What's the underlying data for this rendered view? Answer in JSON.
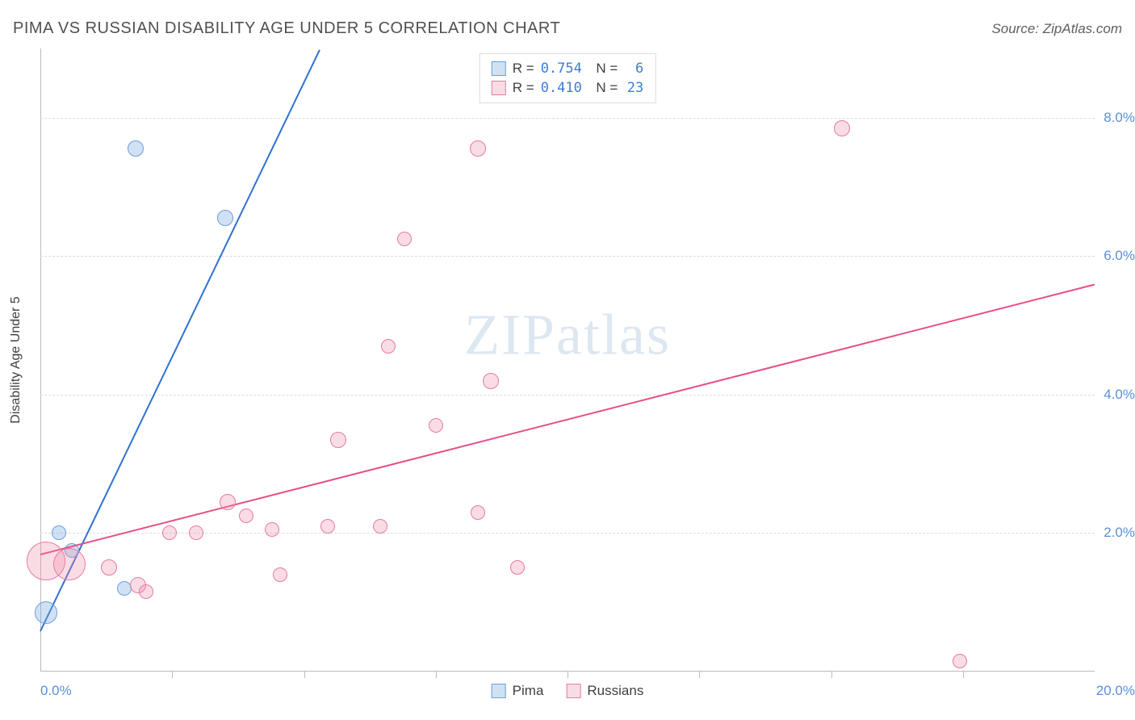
{
  "header": {
    "title": "PIMA VS RUSSIAN DISABILITY AGE UNDER 5 CORRELATION CHART",
    "source": "Source: ZipAtlas.com"
  },
  "watermark": "ZIPatlas",
  "chart": {
    "type": "scatter",
    "y_axis_label": "Disability Age Under 5",
    "xlim": [
      0,
      20
    ],
    "ylim": [
      0,
      9
    ],
    "x_tick_positions": [
      2.5,
      5.0,
      7.5,
      10.0,
      12.5,
      15.0,
      17.5
    ],
    "x_label_min": "0.0%",
    "x_label_max": "20.0%",
    "y_ticks": [
      {
        "v": 2.0,
        "label": "2.0%"
      },
      {
        "v": 4.0,
        "label": "4.0%"
      },
      {
        "v": 6.0,
        "label": "6.0%"
      },
      {
        "v": 8.0,
        "label": "8.0%"
      }
    ],
    "grid_color": "#dcdcdc",
    "background_color": "#ffffff",
    "series": [
      {
        "name": "Pima",
        "fill": "rgba(122,169,224,0.35)",
        "stroke": "#6a9fd8",
        "line_color": "#2f72d0",
        "R": "0.754",
        "N": "6",
        "trend": {
          "x1": 0.0,
          "y1": 0.6,
          "x2": 5.3,
          "y2": 9.0
        },
        "points": [
          {
            "x": 0.1,
            "y": 0.85,
            "r": 14
          },
          {
            "x": 0.35,
            "y": 2.0,
            "r": 9
          },
          {
            "x": 0.6,
            "y": 1.75,
            "r": 9
          },
          {
            "x": 1.6,
            "y": 1.2,
            "r": 9
          },
          {
            "x": 1.8,
            "y": 7.55,
            "r": 10
          },
          {
            "x": 3.5,
            "y": 6.55,
            "r": 10
          }
        ]
      },
      {
        "name": "Russians",
        "fill": "rgba(238,140,170,0.30)",
        "stroke": "#e77aa0",
        "line_color": "#e84e87",
        "R": "0.410",
        "N": "23",
        "trend": {
          "x1": 0.0,
          "y1": 1.7,
          "x2": 20.0,
          "y2": 5.6
        },
        "points": [
          {
            "x": 0.1,
            "y": 1.6,
            "r": 24
          },
          {
            "x": 0.55,
            "y": 1.55,
            "r": 20
          },
          {
            "x": 1.3,
            "y": 1.5,
            "r": 10
          },
          {
            "x": 1.85,
            "y": 1.25,
            "r": 10
          },
          {
            "x": 2.0,
            "y": 1.15,
            "r": 9
          },
          {
            "x": 2.45,
            "y": 2.0,
            "r": 9
          },
          {
            "x": 2.95,
            "y": 2.0,
            "r": 9
          },
          {
            "x": 3.55,
            "y": 2.45,
            "r": 10
          },
          {
            "x": 3.9,
            "y": 2.25,
            "r": 9
          },
          {
            "x": 4.4,
            "y": 2.05,
            "r": 9
          },
          {
            "x": 4.55,
            "y": 1.4,
            "r": 9
          },
          {
            "x": 5.45,
            "y": 2.1,
            "r": 9
          },
          {
            "x": 5.65,
            "y": 3.35,
            "r": 10
          },
          {
            "x": 6.45,
            "y": 2.1,
            "r": 9
          },
          {
            "x": 6.6,
            "y": 4.7,
            "r": 9
          },
          {
            "x": 6.9,
            "y": 6.25,
            "r": 9
          },
          {
            "x": 7.5,
            "y": 3.55,
            "r": 9
          },
          {
            "x": 8.3,
            "y": 2.3,
            "r": 9
          },
          {
            "x": 8.3,
            "y": 7.55,
            "r": 10
          },
          {
            "x": 8.55,
            "y": 4.2,
            "r": 10
          },
          {
            "x": 9.05,
            "y": 1.5,
            "r": 9
          },
          {
            "x": 15.2,
            "y": 7.85,
            "r": 10
          },
          {
            "x": 17.45,
            "y": 0.15,
            "r": 9
          }
        ]
      }
    ]
  },
  "legend_bottom": [
    {
      "label": "Pima",
      "fill": "rgba(122,169,224,0.35)",
      "stroke": "#6a9fd8"
    },
    {
      "label": "Russians",
      "fill": "rgba(238,140,170,0.30)",
      "stroke": "#e77aa0"
    }
  ]
}
